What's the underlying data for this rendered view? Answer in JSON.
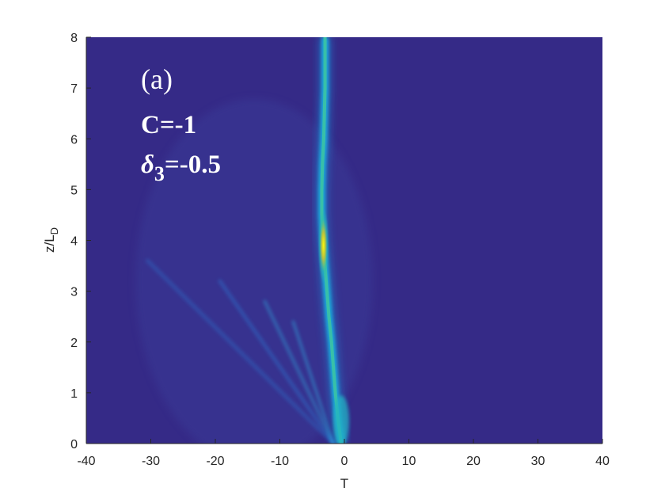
{
  "chart_data": {
    "type": "heatmap",
    "title": "",
    "xlabel": "T",
    "ylabel": "z/L",
    "ylabel_subscript": "D",
    "xlim": [
      -40,
      40
    ],
    "ylim": [
      0,
      8
    ],
    "xticks": [
      -40,
      -30,
      -20,
      -10,
      0,
      10,
      20,
      30,
      40
    ],
    "yticks": [
      0,
      1,
      2,
      3,
      4,
      5,
      6,
      7,
      8
    ],
    "grid": false,
    "colormap": "parula",
    "background_color": "#352a87",
    "annotations": {
      "panel": "(a)",
      "param_c": "C=-1",
      "param_delta_symbol": "δ",
      "param_delta_subscript": "3",
      "param_delta_value": "=-0.5"
    },
    "main_beam_path": [
      {
        "z": 0.0,
        "T": -0.5
      },
      {
        "z": 0.5,
        "T": -1.0
      },
      {
        "z": 1.0,
        "T": -1.4
      },
      {
        "z": 1.5,
        "T": -1.7
      },
      {
        "z": 2.0,
        "T": -2.0
      },
      {
        "z": 2.5,
        "T": -2.4
      },
      {
        "z": 3.0,
        "T": -2.7
      },
      {
        "z": 3.5,
        "T": -3.0
      },
      {
        "z": 4.0,
        "T": -3.3
      },
      {
        "z": 4.5,
        "T": -3.5
      },
      {
        "z": 5.0,
        "T": -3.5
      },
      {
        "z": 5.5,
        "T": -3.4
      },
      {
        "z": 6.0,
        "T": -3.2
      },
      {
        "z": 6.5,
        "T": -3.1
      },
      {
        "z": 7.0,
        "T": -3.0
      },
      {
        "z": 7.5,
        "T": -3.0
      },
      {
        "z": 8.0,
        "T": -3.0
      }
    ],
    "peak_intensity_z": 3.9,
    "radiation_fan_angles_T_per_z": [
      -8,
      -5.5,
      -3.8,
      -2.6
    ]
  }
}
